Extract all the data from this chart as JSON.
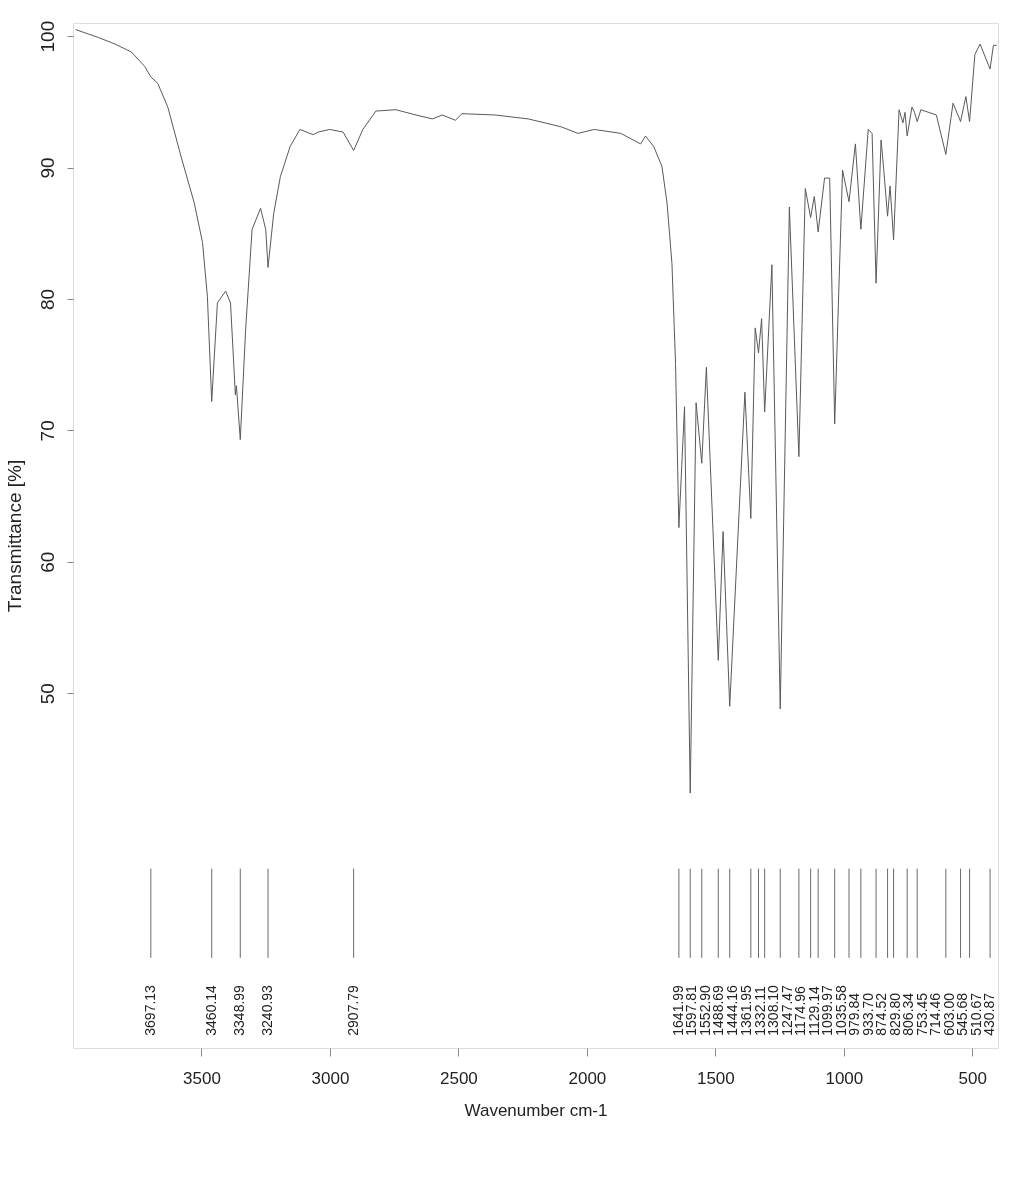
{
  "chart_data": {
    "type": "line",
    "xlabel": "Wavenumber cm-1",
    "ylabel": "Transmittance [%]",
    "xlim": [
      4000,
      400
    ],
    "xticks": [
      3500,
      3000,
      2500,
      2000,
      1500,
      1000,
      500
    ],
    "ylim": [
      23,
      101
    ],
    "yticks": [
      50,
      60,
      70,
      80,
      90,
      100
    ],
    "grid": false,
    "legend": false,
    "marker": "none",
    "line_style": "solid",
    "x": [
      3990,
      3901,
      3837,
      3773,
      3721,
      3697.13,
      3670,
      3631,
      3579,
      3528,
      3496,
      3477,
      3460.14,
      3438,
      3406,
      3387,
      3368,
      3364,
      3348.99,
      3328,
      3303,
      3270,
      3250,
      3240.93,
      3219,
      3193,
      3155,
      3117,
      3065,
      3046,
      3001,
      2949,
      2907.79,
      2872,
      2821,
      2743,
      2665,
      2601,
      2563,
      2512,
      2486,
      2357,
      2228,
      2100,
      2035,
      1971,
      1868,
      1791,
      1772,
      1740,
      1708,
      1688,
      1669,
      1655,
      1641.99,
      1620,
      1597.81,
      1575,
      1552.9,
      1535,
      1488.69,
      1470,
      1444.16,
      1385,
      1361.95,
      1345,
      1332.11,
      1320,
      1308.1,
      1280,
      1247.47,
      1212,
      1174.96,
      1150,
      1129.14,
      1115,
      1099.97,
      1075,
      1055,
      1035.58,
      1005,
      979.84,
      955,
      933.7,
      905,
      890,
      874.52,
      855,
      845,
      829.8,
      820,
      806.34,
      785,
      770,
      762,
      753.45,
      735,
      725,
      714.46,
      700,
      640,
      603.0,
      575,
      545.68,
      525,
      510.67,
      490,
      470,
      430.87,
      418,
      405
    ],
    "series": [
      {
        "color": "#5a5a5a",
        "values": [
          100.5,
          99.9,
          99.4,
          98.8,
          97.7,
          96.9,
          96.4,
          94.6,
          90.8,
          87.3,
          84.3,
          80.2,
          72.2,
          79.7,
          80.6,
          79.7,
          72.7,
          73.4,
          69.3,
          77.7,
          85.3,
          86.9,
          85.3,
          82.4,
          86.5,
          89.3,
          91.6,
          92.9,
          92.5,
          92.7,
          92.9,
          92.7,
          91.3,
          92.9,
          94.3,
          94.4,
          94.0,
          93.7,
          94.0,
          93.6,
          94.1,
          94.0,
          93.7,
          93.1,
          92.6,
          92.9,
          92.6,
          91.8,
          92.4,
          91.6,
          90.1,
          87.3,
          82.7,
          75.1,
          62.6,
          71.8,
          42.4,
          72.1,
          67.5,
          74.8,
          52.5,
          62.3,
          49.0,
          72.9,
          63.3,
          77.8,
          75.9,
          78.5,
          71.4,
          82.6,
          48.8,
          87.0,
          68.0,
          88.4,
          86.2,
          87.8,
          85.1,
          89.2,
          89.2,
          70.5,
          89.8,
          87.4,
          91.8,
          85.3,
          92.9,
          92.6,
          81.2,
          92.1,
          89.9,
          86.3,
          88.6,
          84.5,
          94.4,
          93.4,
          94.2,
          92.4,
          94.6,
          94.2,
          93.5,
          94.4,
          94.0,
          91.0,
          94.9,
          93.5,
          95.4,
          93.5,
          98.6,
          99.4,
          97.5,
          99.3,
          99.3
        ]
      }
    ],
    "ref_lines": [
      {
        "axis": "x",
        "value": 3697.13,
        "label": "3697.13"
      },
      {
        "axis": "x",
        "value": 3460.14,
        "label": "3460.14"
      },
      {
        "axis": "x",
        "value": 3348.99,
        "label": "3348.99"
      },
      {
        "axis": "x",
        "value": 3240.93,
        "label": "3240.93"
      },
      {
        "axis": "x",
        "value": 2907.79,
        "label": "2907.79"
      },
      {
        "axis": "x",
        "value": 1641.99,
        "label": "1641.99"
      },
      {
        "axis": "x",
        "value": 1597.81,
        "label": "1597.81"
      },
      {
        "axis": "x",
        "value": 1552.9,
        "label": "1552.90"
      },
      {
        "axis": "x",
        "value": 1488.69,
        "label": "1488.69"
      },
      {
        "axis": "x",
        "value": 1444.16,
        "label": "1444.16"
      },
      {
        "axis": "x",
        "value": 1361.95,
        "label": "1361.95"
      },
      {
        "axis": "x",
        "value": 1332.11,
        "label": "1332.11"
      },
      {
        "axis": "x",
        "value": 1308.1,
        "label": "1308.10"
      },
      {
        "axis": "x",
        "value": 1247.47,
        "label": "1247.47"
      },
      {
        "axis": "x",
        "value": 1174.96,
        "label": "1174.96"
      },
      {
        "axis": "x",
        "value": 1129.14,
        "label": "1129.14"
      },
      {
        "axis": "x",
        "value": 1099.97,
        "label": "1099.97"
      },
      {
        "axis": "x",
        "value": 1035.58,
        "label": "1035.58"
      },
      {
        "axis": "x",
        "value": 979.84,
        "label": "979.84"
      },
      {
        "axis": "x",
        "value": 933.7,
        "label": "933.70"
      },
      {
        "axis": "x",
        "value": 874.52,
        "label": "874.52"
      },
      {
        "axis": "x",
        "value": 829.8,
        "label": "829.80"
      },
      {
        "axis": "x",
        "value": 806.34,
        "label": "806.34"
      },
      {
        "axis": "x",
        "value": 753.45,
        "label": "753.45"
      },
      {
        "axis": "x",
        "value": 714.46,
        "label": "714.46"
      },
      {
        "axis": "x",
        "value": 603.0,
        "label": "603.00"
      },
      {
        "axis": "x",
        "value": 545.68,
        "label": "545.68"
      },
      {
        "axis": "x",
        "value": 510.67,
        "label": "510.67"
      },
      {
        "axis": "x",
        "value": 430.87,
        "label": "430.87"
      }
    ]
  }
}
